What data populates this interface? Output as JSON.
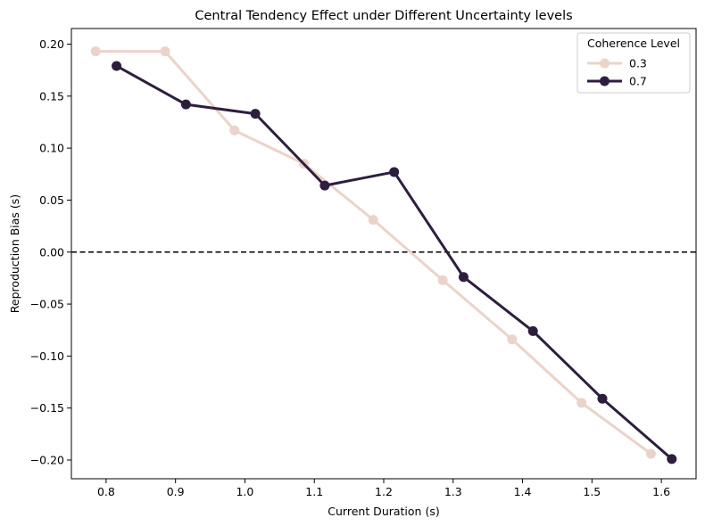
{
  "chart_data": {
    "type": "line",
    "title": "Central Tendency Effect under Different Uncertainty levels",
    "xlabel": "Current Duration (s)",
    "ylabel": "Reproduction Bias (s)",
    "xlim": [
      0.75,
      1.65
    ],
    "ylim": [
      -0.218,
      0.215
    ],
    "x_ticks": [
      0.8,
      0.9,
      1.0,
      1.1,
      1.2,
      1.3,
      1.4,
      1.5,
      1.6
    ],
    "x_tick_labels": [
      "0.8",
      "0.9",
      "1.0",
      "1.1",
      "1.2",
      "1.3",
      "1.4",
      "1.5",
      "1.6"
    ],
    "y_ticks": [
      0.2,
      0.15,
      0.1,
      0.05,
      0.0,
      -0.05,
      -0.1,
      -0.15,
      -0.2
    ],
    "y_tick_labels": [
      "0.20",
      "0.15",
      "0.10",
      "0.05",
      "0.00",
      "−0.05",
      "−0.10",
      "−0.15",
      "−0.20"
    ],
    "grid": false,
    "reference_line": {
      "y": 0.0,
      "style": "dashed",
      "color": "#000000"
    },
    "legend": {
      "title": "Coherence Level",
      "placement": "top-right"
    },
    "series": [
      {
        "name": "0.3",
        "color": "#ebd3ca",
        "x": [
          0.785,
          0.885,
          0.985,
          1.085,
          1.185,
          1.285,
          1.385,
          1.485,
          1.585
        ],
        "y": [
          0.193,
          0.193,
          0.117,
          0.085,
          0.031,
          -0.027,
          -0.084,
          -0.145,
          -0.194
        ]
      },
      {
        "name": "0.7",
        "color": "#2d1e3e",
        "x": [
          0.815,
          0.915,
          1.015,
          1.115,
          1.215,
          1.315,
          1.415,
          1.515,
          1.615
        ],
        "y": [
          0.179,
          0.142,
          0.133,
          0.064,
          0.077,
          -0.024,
          -0.076,
          -0.141,
          -0.199
        ]
      }
    ]
  }
}
